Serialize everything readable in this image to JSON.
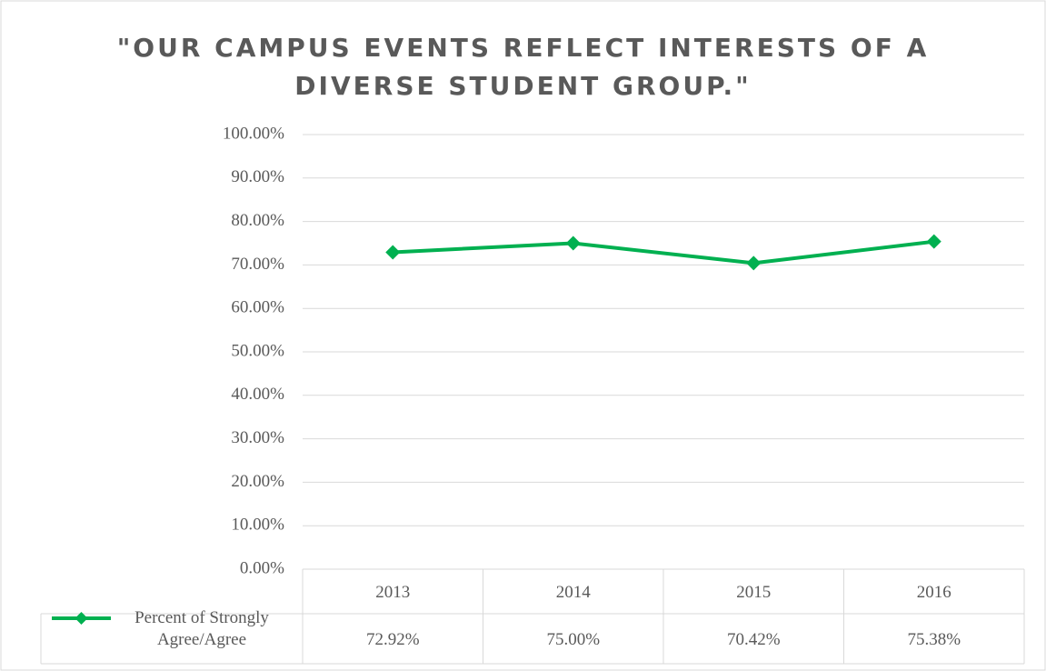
{
  "chart_data": {
    "type": "line",
    "title": "\"OUR CAMPUS EVENTS REFLECT INTERESTS OF A DIVERSE STUDENT GROUP.\"",
    "categories": [
      "2013",
      "2014",
      "2015",
      "2016"
    ],
    "series": [
      {
        "name": "Percent of Strongly Agree/Agree",
        "color": "#00b050",
        "values": [
          72.92,
          75.0,
          70.42,
          75.38
        ],
        "value_labels": [
          "72.92%",
          "75.00%",
          "70.42%",
          "75.38%"
        ]
      }
    ],
    "ylim": [
      0,
      100
    ],
    "yticks": [
      {
        "value": 0,
        "label": "0.00%"
      },
      {
        "value": 10,
        "label": "10.00%"
      },
      {
        "value": 20,
        "label": "20.00%"
      },
      {
        "value": 30,
        "label": "30.00%"
      },
      {
        "value": 40,
        "label": "40.00%"
      },
      {
        "value": 50,
        "label": "50.00%"
      },
      {
        "value": 60,
        "label": "60.00%"
      },
      {
        "value": 70,
        "label": "70.00%"
      },
      {
        "value": 80,
        "label": "80.00%"
      },
      {
        "value": 90,
        "label": "90.00%"
      },
      {
        "value": 100,
        "label": "100.00%"
      }
    ],
    "grid": true
  }
}
